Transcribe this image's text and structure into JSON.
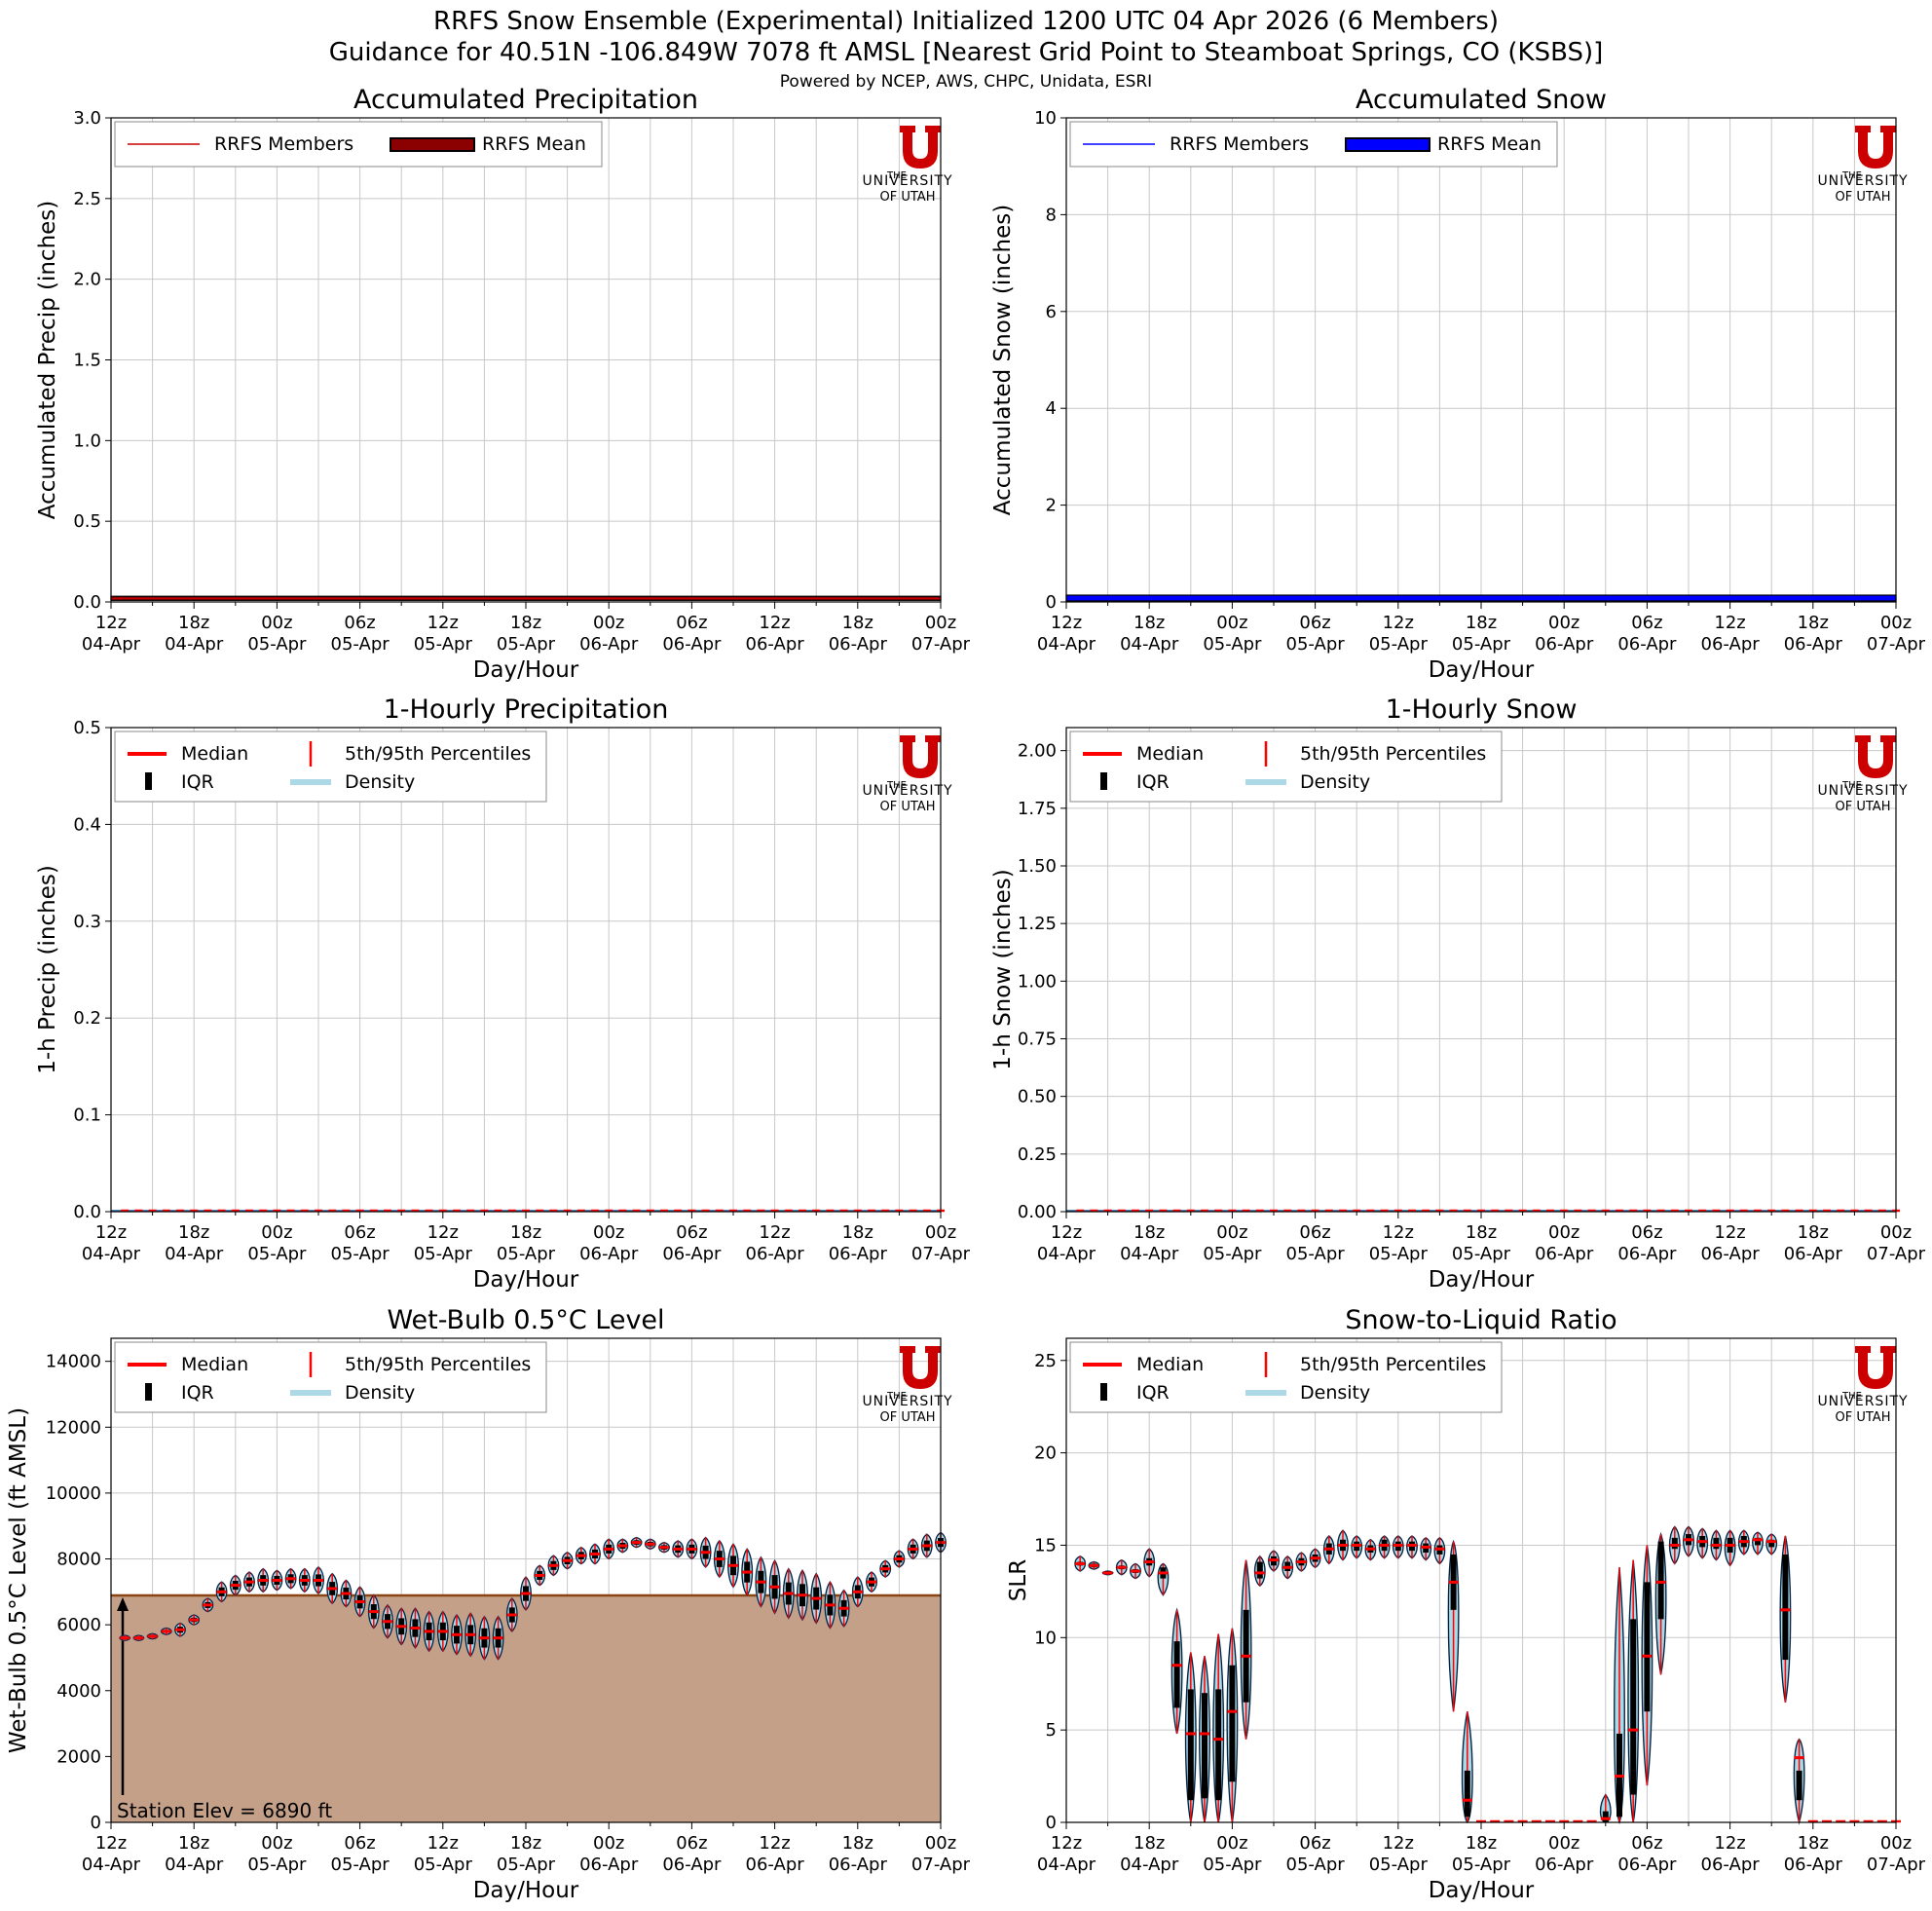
{
  "header": {
    "title_line1": "RRFS Snow Ensemble (Experimental) Initialized 1200 UTC 04 Apr 2026 (6 Members)",
    "title_line2": "Guidance for 40.51N -106.849W 7078 ft AMSL [Nearest Grid Point to Steamboat Springs, CO (KSBS)]",
    "credit": "Powered by NCEP, AWS, CHPC, Unidata, ESRI"
  },
  "logo": {
    "the": "THE",
    "university": "UNIVERSITY",
    "of_utah": "OF UTAH",
    "color": "#cc0000"
  },
  "colors": {
    "precip_member": "#cc0000",
    "precip_mean": "#8b0000",
    "snow_member": "#0000ff",
    "snow_mean": "#0000ff",
    "median": "#ff0000",
    "percentile": "#ff0000",
    "iqr": "#000000",
    "density": "#add8e6",
    "density_edge": "#1f5fa0",
    "terrain_fill": "#c4a089",
    "terrain_line": "#8b4513"
  },
  "x_ticks": [
    "12z\n04-Apr",
    "18z\n04-Apr",
    "00z\n05-Apr",
    "06z\n05-Apr",
    "12z\n05-Apr",
    "18z\n05-Apr",
    "00z\n06-Apr",
    "06z\n06-Apr",
    "12z\n06-Apr",
    "18z\n06-Apr",
    "00z\n07-Apr"
  ],
  "chart_data": [
    {
      "id": "accum_precip",
      "type": "line",
      "title": "Accumulated Precipitation",
      "xlabel": "Day/Hour",
      "ylabel": "Accumulated Precip (inches)",
      "ylim": [
        0,
        3.0
      ],
      "yticks": [
        "0.0",
        "0.5",
        "1.0",
        "1.5",
        "2.0",
        "2.5",
        "3.0"
      ],
      "grid": true,
      "legend": [
        "RRFS Members",
        "RRFS Mean"
      ],
      "legend_position": "upper-left",
      "x": [
        0,
        60
      ],
      "series": [
        {
          "name": "RRFS Members",
          "values": [
            0.02,
            0.02
          ]
        },
        {
          "name": "RRFS Mean",
          "values": [
            0.02,
            0.02
          ]
        }
      ]
    },
    {
      "id": "accum_snow",
      "type": "line",
      "title": "Accumulated Snow",
      "xlabel": "Day/Hour",
      "ylabel": "Accumulated Snow (inches)",
      "ylim": [
        0,
        10
      ],
      "yticks": [
        "0",
        "2",
        "4",
        "6",
        "8",
        "10"
      ],
      "grid": true,
      "legend": [
        "RRFS Members",
        "RRFS Mean"
      ],
      "legend_position": "upper-left",
      "x": [
        0,
        60
      ],
      "series": [
        {
          "name": "RRFS Members",
          "values": [
            0.08,
            0.08
          ]
        },
        {
          "name": "RRFS Mean",
          "values": [
            0.08,
            0.08
          ]
        }
      ]
    },
    {
      "id": "hourly_precip",
      "type": "violin",
      "title": "1-Hourly Precipitation",
      "xlabel": "Day/Hour",
      "ylabel": "1-h Precip (inches)",
      "ylim": [
        0,
        0.5
      ],
      "yticks": [
        "0.0",
        "0.1",
        "0.2",
        "0.3",
        "0.4",
        "0.5"
      ],
      "grid": true,
      "legend": [
        "Median",
        "IQR",
        "5th/95th Percentiles",
        "Density"
      ],
      "legend_position": "upper-left",
      "median_all_hours": 0.0
    },
    {
      "id": "hourly_snow",
      "type": "violin",
      "title": "1-Hourly Snow",
      "xlabel": "Day/Hour",
      "ylabel": "1-h Snow (inches)",
      "ylim": [
        0,
        2.1
      ],
      "yticks": [
        "0.00",
        "0.25",
        "0.50",
        "0.75",
        "1.00",
        "1.25",
        "1.50",
        "1.75",
        "2.00"
      ],
      "grid": true,
      "legend": [
        "Median",
        "IQR",
        "5th/95th Percentiles",
        "Density"
      ],
      "legend_position": "upper-left",
      "median_all_hours": 0.0
    },
    {
      "id": "wetbulb",
      "type": "violin",
      "title": "Wet-Bulb 0.5°C Level",
      "xlabel": "Day/Hour",
      "ylabel": "Wet-Bulb 0.5°C Level (ft AMSL)",
      "ylim": [
        0,
        14700
      ],
      "yticks": [
        "0",
        "2000",
        "4000",
        "6000",
        "8000",
        "10000",
        "12000",
        "14000"
      ],
      "grid": true,
      "legend": [
        "Median",
        "IQR",
        "5th/95th Percentiles",
        "Density"
      ],
      "legend_position": "upper-left",
      "station_elev": 6890,
      "station_label": "Station Elev = 6890 ft",
      "hours": [
        1,
        2,
        3,
        4,
        5,
        6,
        7,
        8,
        9,
        10,
        11,
        12,
        13,
        14,
        15,
        16,
        17,
        18,
        19,
        20,
        21,
        22,
        23,
        24,
        25,
        26,
        27,
        28,
        29,
        30,
        31,
        32,
        33,
        34,
        35,
        36,
        37,
        38,
        39,
        40,
        41,
        42,
        43,
        44,
        45,
        46,
        47,
        48,
        49,
        50,
        51,
        52,
        53,
        54,
        55,
        56,
        57,
        58,
        59,
        60
      ],
      "median": [
        5600,
        5600,
        5650,
        5800,
        5850,
        6150,
        6600,
        7000,
        7200,
        7300,
        7350,
        7350,
        7400,
        7350,
        7350,
        7100,
        6950,
        6700,
        6400,
        6100,
        5950,
        5900,
        5800,
        5800,
        5700,
        5700,
        5600,
        5600,
        6300,
        6950,
        7500,
        7800,
        7950,
        8100,
        8150,
        8300,
        8400,
        8500,
        8450,
        8350,
        8300,
        8300,
        8200,
        8000,
        7800,
        7600,
        7300,
        7150,
        6950,
        6900,
        6800,
        6600,
        6500,
        7000,
        7300,
        7700,
        8000,
        8300,
        8400,
        8500
      ],
      "spread": [
        80,
        80,
        80,
        100,
        200,
        150,
        200,
        300,
        300,
        300,
        350,
        300,
        300,
        350,
        400,
        450,
        400,
        450,
        500,
        500,
        550,
        600,
        600,
        600,
        600,
        650,
        650,
        650,
        500,
        500,
        300,
        300,
        250,
        250,
        300,
        300,
        200,
        150,
        150,
        150,
        250,
        300,
        450,
        550,
        650,
        700,
        750,
        800,
        750,
        750,
        750,
        700,
        550,
        450,
        300,
        250,
        250,
        300,
        350,
        300
      ]
    },
    {
      "id": "slr",
      "type": "violin",
      "title": "Snow-to-Liquid Ratio",
      "xlabel": "Day/Hour",
      "ylabel": "SLR",
      "ylim": [
        0,
        26.2
      ],
      "yticks": [
        "0",
        "5",
        "10",
        "15",
        "20",
        "25"
      ],
      "grid": true,
      "legend": [
        "Median",
        "IQR",
        "5th/95th Percentiles",
        "Density"
      ],
      "legend_position": "upper-left",
      "hours": [
        1,
        2,
        3,
        4,
        5,
        6,
        7,
        8,
        9,
        10,
        11,
        12,
        13,
        14,
        15,
        16,
        17,
        18,
        19,
        20,
        21,
        22,
        23,
        24,
        25,
        26,
        27,
        28,
        29,
        30,
        31,
        32,
        33,
        34,
        35,
        36,
        37,
        38,
        39,
        40,
        41,
        42,
        43,
        44,
        45,
        46,
        47,
        48,
        49,
        50,
        51,
        52,
        53,
        54,
        55,
        56,
        57,
        58,
        59,
        60
      ],
      "median": [
        14.0,
        13.9,
        13.5,
        13.8,
        13.6,
        14.1,
        13.5,
        8.5,
        4.8,
        4.8,
        4.5,
        6.0,
        9.0,
        13.5,
        14.2,
        13.8,
        14.1,
        14.3,
        14.8,
        15.0,
        15.0,
        14.8,
        15.0,
        15.0,
        15.0,
        14.9,
        14.8,
        13.0,
        1.2,
        0,
        0,
        0,
        0,
        0,
        0,
        0,
        0,
        0,
        0.2,
        2.5,
        5.0,
        9.0,
        13.0,
        15.0,
        15.3,
        15.2,
        15.0,
        15.0,
        15.2,
        15.3,
        15.2,
        11.5,
        3.5,
        0,
        0,
        0,
        0,
        0,
        0,
        0
      ],
      "p05": [
        13.6,
        13.7,
        13.4,
        13.4,
        13.2,
        13.3,
        12.3,
        4.8,
        0,
        0,
        0,
        0,
        4.5,
        12.8,
        13.6,
        13.2,
        13.6,
        13.8,
        14.0,
        14.2,
        14.3,
        14.2,
        14.3,
        14.3,
        14.3,
        14.2,
        14.0,
        6.0,
        0,
        0,
        0,
        0,
        0,
        0,
        0,
        0,
        0,
        0,
        0,
        0,
        0,
        2.0,
        8.0,
        14.0,
        14.4,
        14.3,
        14.2,
        13.9,
        14.5,
        14.5,
        14.5,
        6.5,
        0,
        0,
        0,
        0,
        0,
        0,
        0,
        0
      ],
      "p95": [
        14.4,
        14.1,
        13.6,
        14.2,
        14.0,
        14.8,
        14.0,
        11.5,
        9.2,
        9.0,
        10.2,
        10.5,
        14.2,
        14.4,
        14.7,
        14.4,
        14.6,
        14.8,
        15.5,
        15.8,
        15.5,
        15.3,
        15.5,
        15.5,
        15.5,
        15.4,
        15.4,
        15.2,
        6.0,
        0,
        0,
        0,
        0,
        0,
        0,
        0,
        0,
        0,
        1.5,
        13.8,
        14.2,
        15.0,
        15.6,
        16.0,
        16.0,
        15.9,
        15.8,
        15.8,
        15.8,
        15.7,
        15.6,
        15.5,
        4.5,
        0,
        0,
        0,
        0,
        0,
        0,
        0
      ],
      "q25": [
        13.9,
        13.8,
        13.5,
        13.7,
        13.5,
        13.9,
        13.2,
        6.2,
        1.2,
        1.3,
        1.2,
        2.2,
        6.5,
        13.2,
        13.9,
        13.6,
        13.9,
        14.1,
        14.5,
        14.7,
        14.7,
        14.6,
        14.7,
        14.7,
        14.7,
        14.6,
        14.5,
        11.5,
        0.3,
        0,
        0,
        0,
        0,
        0,
        0,
        0,
        0,
        0,
        0,
        0.3,
        1.5,
        6.0,
        11.0,
        14.8,
        15.0,
        14.9,
        14.8,
        14.6,
        14.9,
        15.0,
        14.9,
        8.8,
        1.2,
        0,
        0,
        0,
        0,
        0,
        0,
        0
      ],
      "q75": [
        14.1,
        14.0,
        13.6,
        13.9,
        13.7,
        14.3,
        13.8,
        9.8,
        7.2,
        7.0,
        7.2,
        8.5,
        11.5,
        14.1,
        14.4,
        14.1,
        14.3,
        14.5,
        15.1,
        15.3,
        15.2,
        15.0,
        15.3,
        15.2,
        15.2,
        15.1,
        15.0,
        14.5,
        2.8,
        0,
        0,
        0,
        0,
        0,
        0,
        0,
        0,
        0,
        0.6,
        4.8,
        11.0,
        13.0,
        15.2,
        15.4,
        15.6,
        15.5,
        15.4,
        15.4,
        15.5,
        15.4,
        15.3,
        14.5,
        2.8,
        0,
        0,
        0,
        0,
        0,
        0,
        0
      ]
    }
  ]
}
